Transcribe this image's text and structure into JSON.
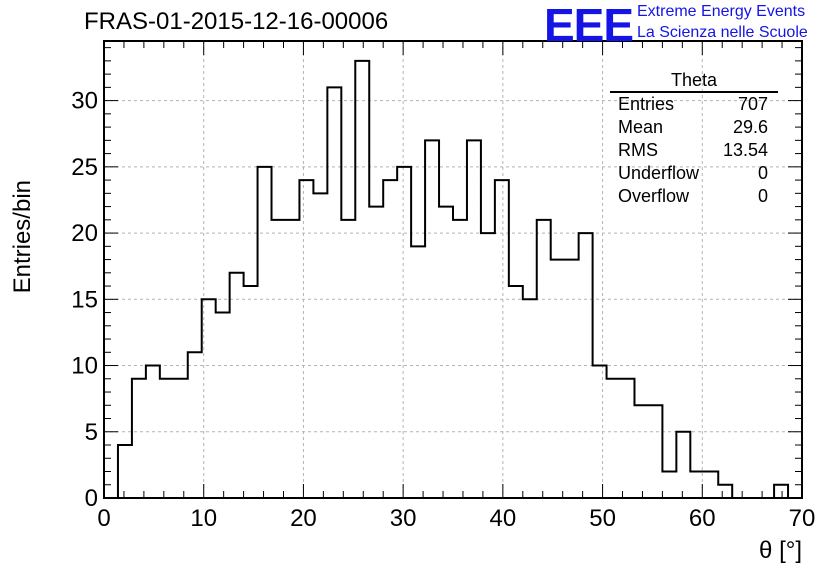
{
  "title": "FRAS-01-2015-12-16-00006",
  "logo": {
    "text": "EEE",
    "line1": "Extreme Energy Events",
    "line2": "La Scienza nelle Scuole"
  },
  "stats": {
    "name": "Theta",
    "rows": [
      {
        "label": "Entries",
        "value": "707"
      },
      {
        "label": "Mean",
        "value": "29.6"
      },
      {
        "label": "RMS",
        "value": "13.54"
      },
      {
        "label": "Underflow",
        "value": "0"
      },
      {
        "label": "Overflow",
        "value": "0"
      }
    ]
  },
  "chart_data": {
    "type": "bar",
    "style": "step-histogram",
    "xlabel": "θ [°]",
    "ylabel": "Entries/bin",
    "xlim": [
      0,
      70
    ],
    "ylim": [
      0,
      34.5
    ],
    "xticks": [
      0,
      10,
      20,
      30,
      40,
      50,
      60,
      70
    ],
    "yticks": [
      0,
      5,
      10,
      15,
      20,
      25,
      30
    ],
    "grid": true,
    "bin_edges": [
      0,
      1.4,
      2.8,
      4.2,
      5.6,
      7.0,
      8.4,
      9.8,
      11.2,
      12.6,
      14.0,
      15.4,
      16.8,
      18.2,
      19.6,
      21.0,
      22.4,
      23.8,
      25.2,
      26.6,
      28.0,
      29.4,
      30.8,
      32.2,
      33.6,
      35.0,
      36.4,
      37.8,
      39.2,
      40.6,
      42.0,
      43.4,
      44.8,
      46.2,
      47.6,
      49.0,
      50.4,
      51.8,
      53.2,
      54.6,
      56.0,
      57.4,
      58.8,
      60.2,
      61.6,
      63.0,
      64.4,
      65.8,
      67.2,
      68.6,
      70.0
    ],
    "values": [
      0,
      4,
      9,
      10,
      9,
      9,
      11,
      15,
      14,
      17,
      16,
      25,
      21,
      21,
      24,
      23,
      31,
      21,
      33,
      22,
      24,
      25,
      19,
      27,
      22,
      21,
      27,
      20,
      24,
      16,
      15,
      21,
      18,
      18,
      20,
      10,
      9,
      9,
      7,
      7,
      2,
      5,
      2,
      2,
      1,
      0,
      0,
      0,
      1,
      0
    ],
    "line_color": "#000000",
    "grid_color": "#b4b4b4"
  }
}
